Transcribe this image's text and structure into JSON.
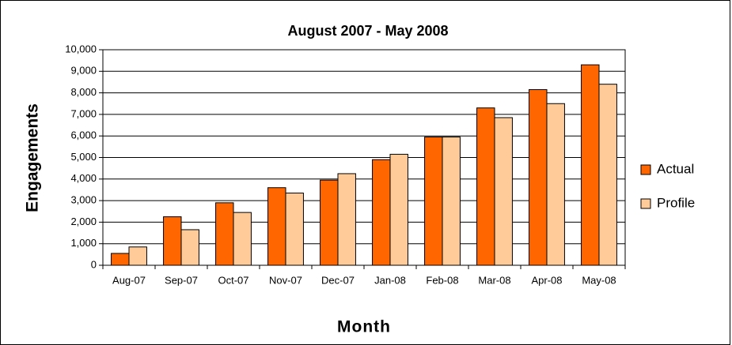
{
  "chart_data": {
    "type": "bar",
    "title": "August 2007 - May 2008",
    "x_label": "Month",
    "y_label": "Engagements",
    "categories": [
      "Aug-07",
      "Sep-07",
      "Oct-07",
      "Nov-07",
      "Dec-07",
      "Jan-08",
      "Feb-08",
      "Mar-08",
      "Apr-08",
      "May-08"
    ],
    "series": [
      {
        "name": "Actual",
        "color": "#ff6600",
        "values": [
          550,
          2250,
          2900,
          3600,
          3950,
          4900,
          5950,
          7300,
          8150,
          9300
        ]
      },
      {
        "name": "Profile",
        "color": "#ffcc99",
        "values": [
          850,
          1650,
          2450,
          3350,
          4250,
          5150,
          5950,
          6850,
          7500,
          8400
        ]
      }
    ],
    "ylim": [
      0,
      10000
    ],
    "yticks": [
      0,
      {
        "value": 1000,
        "label": "1,000"
      },
      {
        "value": 2000,
        "label": "2,000"
      },
      {
        "value": 3000,
        "label": "3,000"
      },
      {
        "value": 4000,
        "label": "4,000"
      },
      {
        "value": 5000,
        "label": "5,000"
      },
      {
        "value": 6000,
        "label": "6,000"
      },
      {
        "value": 7000,
        "label": "7,000"
      },
      {
        "value": 8000,
        "label": "8,000"
      },
      {
        "value": 9000,
        "label": "9,000"
      },
      {
        "value": 10000,
        "label": "10,000"
      }
    ],
    "grid": true,
    "legend": "right"
  }
}
